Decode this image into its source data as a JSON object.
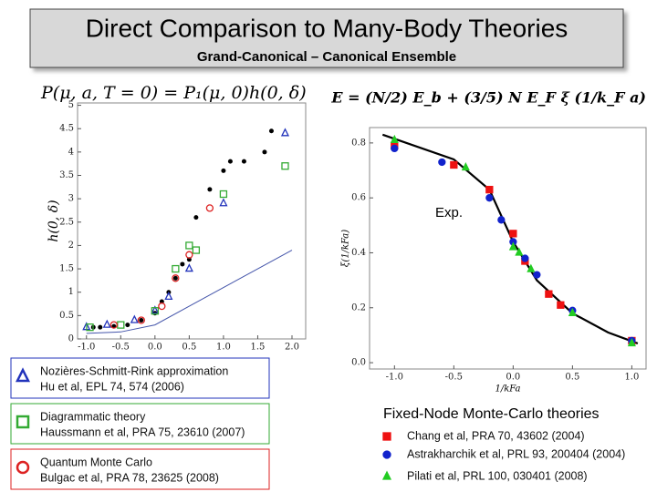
{
  "title": "Direct Comparison to Many-Body Theories",
  "subtitle": "Grand-Canonical – Canonical Ensemble",
  "formula_left": "P(μ, a, T = 0) = P₁(μ, 0)h(0, δ)",
  "formula_right": "E = (N/2) E_b + (3/5) N E_F ξ (1/k_F a)",
  "chart_data": [
    {
      "type": "scatter",
      "ylabel": "h(0, δ)",
      "xlim": [
        -1.13,
        2.2
      ],
      "ylim": [
        0,
        5.05
      ],
      "xticks": [
        {
          "value": -1,
          "label": "-1.0"
        },
        {
          "value": -0.5,
          "label": "-0.5"
        },
        {
          "value": 0,
          "label": "0.0"
        },
        {
          "value": 0.5,
          "label": "0.5"
        },
        {
          "value": 1,
          "label": "1.0"
        },
        {
          "value": 1.5,
          "label": "1.5"
        },
        {
          "value": 2,
          "label": "2.0"
        }
      ],
      "yticks": [
        0,
        0.5,
        1,
        1.5,
        2,
        2.5,
        3,
        3.5,
        4,
        4.5,
        5
      ],
      "series": [
        {
          "color": "#000000",
          "marker": "dot",
          "x": [
            -0.9,
            -0.8,
            -0.6,
            -0.4,
            -0.2,
            0,
            0.1,
            0.2,
            0.3,
            0.4,
            0.5,
            0.6,
            0.8,
            1.0,
            1.1,
            1.3,
            1.6,
            1.7
          ],
          "values": [
            0.25,
            0.25,
            0.27,
            0.3,
            0.4,
            0.55,
            0.8,
            1.0,
            1.3,
            1.6,
            1.7,
            2.6,
            3.2,
            3.6,
            3.8,
            3.8,
            4.0,
            4.45
          ]
        },
        {
          "color": "#4455aa",
          "line": true,
          "x": [
            -1.0,
            -0.5,
            0,
            0.5,
            1.0,
            1.5,
            2.0
          ],
          "values": [
            0.12,
            0.15,
            0.3,
            0.7,
            1.1,
            1.5,
            1.9
          ]
        },
        {
          "name": "Nozières-Schmitt-Rink approximation",
          "citation": "Hu et al, EPL 74, 574 (2006)",
          "color": "#2233bb",
          "marker": "triangle",
          "x": [
            -1.0,
            -0.7,
            -0.3,
            0,
            0.2,
            0.5,
            1.0,
            1.9
          ],
          "values": [
            0.25,
            0.3,
            0.4,
            0.6,
            0.9,
            1.5,
            2.9,
            4.4
          ]
        },
        {
          "name": "Diagrammatic theory",
          "citation": "Haussmann et al, PRA 75, 23610 (2007)",
          "color": "#33aa33",
          "marker": "square",
          "x": [
            -0.95,
            -0.5,
            0,
            0.3,
            0.5,
            0.6,
            1.0,
            1.9
          ],
          "values": [
            0.25,
            0.3,
            0.6,
            1.5,
            2.0,
            1.9,
            3.1,
            3.7
          ]
        },
        {
          "name": "Quantum Monte Carlo",
          "citation": "Bulgac et al, PRA 78, 23625 (2008)",
          "color": "#dd2222",
          "marker": "circle",
          "x": [
            -0.6,
            -0.2,
            0.1,
            0.3,
            0.5,
            0.8
          ],
          "values": [
            0.3,
            0.4,
            0.7,
            1.3,
            1.8,
            2.8
          ]
        }
      ]
    },
    {
      "type": "scatter",
      "xlabel": "1/kFa",
      "ylabel": "ξ(1/kFa)",
      "legend_title": "Fixed-Node Monte-Carlo theories",
      "annotation": "Exp.",
      "xlim": [
        -1.21,
        1.12
      ],
      "ylim": [
        -0.023,
        0.856
      ],
      "xticks": [
        {
          "value": -1,
          "label": "-1.0"
        },
        {
          "value": -0.5,
          "label": "-0.5"
        },
        {
          "value": 0,
          "label": "0.0"
        },
        0.5,
        {
          "value": 1,
          "label": "1.0"
        }
      ],
      "yticks": [
        {
          "value": 0,
          "label": "0.0"
        },
        0.2,
        0.4,
        0.6,
        0.8
      ],
      "series": [
        {
          "color": "#000000",
          "line": true,
          "x": [
            -1.1,
            -0.5,
            -0.2,
            0,
            0.2,
            0.5,
            0.8,
            1.05
          ],
          "values": [
            0.83,
            0.74,
            0.63,
            0.44,
            0.3,
            0.18,
            0.11,
            0.07
          ]
        },
        {
          "name": "Chang et al, PRA 70, 43602 (2004)",
          "color": "#ee1111",
          "marker": "square",
          "x": [
            -1.0,
            -0.5,
            -0.2,
            0,
            0.1,
            0.3,
            0.4,
            1.0
          ],
          "values": [
            0.79,
            0.72,
            0.63,
            0.47,
            0.37,
            0.25,
            0.21,
            0.08
          ]
        },
        {
          "name": "Astrakharchik et al, PRL 93, 200404 (2004)",
          "color": "#1122cc",
          "marker": "circle",
          "x": [
            -1.0,
            -0.6,
            -0.2,
            -0.1,
            0,
            0.1,
            0.2,
            0.5,
            1.0
          ],
          "values": [
            0.78,
            0.73,
            0.6,
            0.52,
            0.44,
            0.38,
            0.32,
            0.19,
            0.08
          ]
        },
        {
          "name": "Pilati et al, PRL 100, 030401 (2008)",
          "color": "#22cc22",
          "marker": "triangle",
          "x": [
            -1.0,
            -0.4,
            0,
            0.05,
            0.15,
            0.5,
            1.0
          ],
          "values": [
            0.81,
            0.71,
            0.42,
            0.4,
            0.34,
            0.18,
            0.07
          ]
        }
      ]
    }
  ]
}
